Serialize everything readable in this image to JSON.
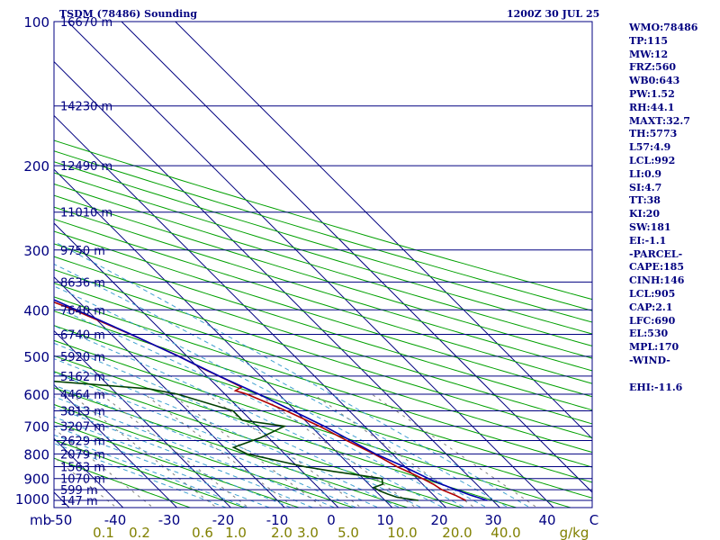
{
  "header": {
    "title": "TSDM (78486) Sounding",
    "datetime": "1200Z 30 JUL 25"
  },
  "indices": [
    "WMO:78486",
    "TP:115",
    "MW:12",
    "FRZ:560",
    "WB0:643",
    "PW:1.52",
    "RH:44.1",
    "MAXT:32.7",
    "TH:5773",
    "L57:4.9",
    "LCL:992",
    "LI:0.9",
    "SI:4.7",
    "TT:38",
    "KI:20",
    "SW:181",
    "EI:-1.1",
    "-PARCEL-",
    "CAPE:185",
    "CINH:146",
    "LCL:905",
    "CAP:2.1",
    "LFC:690",
    "EL:530",
    "MPL:170",
    "-WIND-",
    "",
    "EHI:-11.6"
  ],
  "colors": {
    "isobar": "#000080",
    "isotherm": "#000080",
    "dry_adiabat": "#00a000",
    "mixing_ratio": "#808080",
    "moist_adiabat": "#40a0d0",
    "temperature": "#b00000",
    "dewpoint": "#004000",
    "parcel": "#0000b0",
    "text": "#000080",
    "mixing_ratio_text": "#808000"
  },
  "chart_data": {
    "type": "line",
    "subtype": "skew-T log-P sounding",
    "ylim": [
      1000,
      100
    ],
    "xlim": [
      -50,
      50
    ],
    "xlabel_units": "C",
    "ylabel_units": "mb",
    "pressure_ticks": [
      {
        "p": 100,
        "label": "100"
      },
      {
        "p": 200,
        "label": "200"
      },
      {
        "p": 300,
        "label": "300"
      },
      {
        "p": 400,
        "label": "400"
      },
      {
        "p": 500,
        "label": "500"
      },
      {
        "p": 600,
        "label": "600"
      },
      {
        "p": 700,
        "label": "700"
      },
      {
        "p": 800,
        "label": "800"
      },
      {
        "p": 900,
        "label": "900"
      },
      {
        "p": 1000,
        "label": "1000"
      }
    ],
    "temperature_ticks": [
      {
        "t": -50,
        "label": "-50"
      },
      {
        "t": -40,
        "label": "-40"
      },
      {
        "t": -30,
        "label": "-30"
      },
      {
        "t": -20,
        "label": "-20"
      },
      {
        "t": -10,
        "label": "-10"
      },
      {
        "t": 0,
        "label": "0"
      },
      {
        "t": 10,
        "label": "10"
      },
      {
        "t": 20,
        "label": "20"
      },
      {
        "t": 30,
        "label": "30"
      },
      {
        "t": 40,
        "label": "40"
      }
    ],
    "axis_unit_labels": {
      "pressure": "mb",
      "temperature": "C",
      "mixing_ratio": "g/kg"
    },
    "mixing_ratio_ticks": [
      "0.1",
      "0.2",
      "0.6",
      "1.0",
      "2.0",
      "3.0",
      "5.0",
      "10.0",
      "20.0",
      "40.0"
    ],
    "height_levels": [
      {
        "p": 100,
        "label": "16670 m"
      },
      {
        "p": 150,
        "label": "14230 m"
      },
      {
        "p": 200,
        "label": "12490 m"
      },
      {
        "p": 250,
        "label": "11010 m"
      },
      {
        "p": 300,
        "label": "9750 m"
      },
      {
        "p": 350,
        "label": "8636 m"
      },
      {
        "p": 400,
        "label": "7640 m"
      },
      {
        "p": 450,
        "label": "6740 m"
      },
      {
        "p": 500,
        "label": "5920 m"
      },
      {
        "p": 550,
        "label": "5162 m"
      },
      {
        "p": 600,
        "label": "4464 m"
      },
      {
        "p": 650,
        "label": "3813 m"
      },
      {
        "p": 700,
        "label": "3207 m"
      },
      {
        "p": 750,
        "label": "2629 m"
      },
      {
        "p": 800,
        "label": "2079 m"
      },
      {
        "p": 850,
        "label": "1563 m"
      },
      {
        "p": 900,
        "label": "1070 m"
      },
      {
        "p": 950,
        "label": "599 m"
      },
      {
        "p": 1000,
        "label": "147 m"
      }
    ],
    "series": [
      {
        "key": "temperature",
        "points": [
          [
            1000,
            25.0
          ],
          [
            975,
            24.0
          ],
          [
            950,
            22.5
          ],
          [
            925,
            22.0
          ],
          [
            900,
            21.0
          ],
          [
            875,
            19.8
          ],
          [
            850,
            18.5
          ],
          [
            800,
            16.6
          ],
          [
            750,
            14.0
          ],
          [
            700,
            11.6
          ],
          [
            650,
            8.3
          ],
          [
            600,
            4.1
          ],
          [
            590,
            2.6
          ],
          [
            580,
            4.4
          ],
          [
            560,
            3.0
          ],
          [
            530,
            0.6
          ],
          [
            500,
            -1.5
          ],
          [
            450,
            -6.4
          ],
          [
            400,
            -12.4
          ],
          [
            380,
            -15.6
          ],
          [
            350,
            -19.3
          ],
          [
            300,
            -27.1
          ],
          [
            250,
            -37.7
          ],
          [
            220,
            -44.5
          ],
          [
            200,
            -47.3
          ],
          [
            170,
            -51.7
          ],
          [
            150,
            -53.8
          ],
          [
            130,
            -54.3
          ],
          [
            115,
            -55.6
          ],
          [
            107,
            -54.8
          ],
          [
            100,
            -54.3
          ]
        ]
      },
      {
        "key": "dewpoint",
        "points": [
          [
            1000,
            16.2
          ],
          [
            985,
            12.8
          ],
          [
            970,
            11.7
          ],
          [
            955,
            10.8
          ],
          [
            940,
            10.3
          ],
          [
            925,
            12.6
          ],
          [
            900,
            13.5
          ],
          [
            870,
            5.8
          ],
          [
            850,
            1.3
          ],
          [
            800,
            -7.0
          ],
          [
            775,
            -8.3
          ],
          [
            740,
            -1.5
          ],
          [
            700,
            5.1
          ],
          [
            680,
            -1.6
          ],
          [
            650,
            -1.6
          ],
          [
            600,
            -8.8
          ],
          [
            585,
            -13.1
          ],
          [
            560,
            -32.6
          ],
          [
            520,
            -33.5
          ],
          [
            500,
            -36.0
          ],
          [
            480,
            -30.0
          ],
          [
            440,
            -32.8
          ],
          [
            410,
            -25.6
          ],
          [
            385,
            -31.5
          ],
          [
            370,
            -26.7
          ],
          [
            350,
            -33.3
          ],
          [
            330,
            -34.0
          ],
          [
            300,
            -31.6
          ],
          [
            250,
            -40.0
          ],
          [
            220,
            -46.2
          ],
          [
            200,
            -54.5
          ],
          [
            180,
            -57.1
          ],
          [
            160,
            -62.8
          ],
          [
            150,
            -64.6
          ],
          [
            140,
            -63.7
          ],
          [
            120,
            -68.4
          ],
          [
            110,
            -70.5
          ],
          [
            100,
            -71.6
          ]
        ]
      },
      {
        "key": "parcel",
        "points": [
          [
            1000,
            29.0
          ],
          [
            975,
            26.9
          ],
          [
            950,
            25.1
          ],
          [
            920,
            23.2
          ],
          [
            905,
            22.3
          ],
          [
            850,
            19.8
          ],
          [
            800,
            16.9
          ],
          [
            700,
            12.5
          ],
          [
            600,
            6.3
          ],
          [
            550,
            2.3
          ],
          [
            500,
            -1.6
          ],
          [
            450,
            -6.3
          ],
          [
            400,
            -11.9
          ],
          [
            350,
            -18.3
          ],
          [
            300,
            -26.2
          ],
          [
            250,
            -36.0
          ],
          [
            200,
            -48.0
          ],
          [
            170,
            -56.0
          ],
          [
            150,
            -62.0
          ],
          [
            130,
            -68.4
          ],
          [
            110,
            -75.8
          ]
        ]
      }
    ]
  }
}
